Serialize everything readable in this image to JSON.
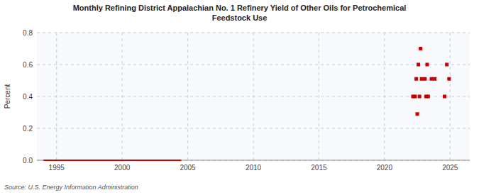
{
  "chart_data": {
    "type": "line",
    "title": "Monthly Refining District Appalachian No. 1 Refinery Yield of Other Oils for Petrochemical\nFeedstock Use",
    "y_label": "Percent",
    "annotations": [
      "Source: U.S. Energy Information Administration"
    ],
    "xlim": [
      1993.5,
      2026.5
    ],
    "xticks": [
      1995,
      2000,
      2005,
      2010,
      2015,
      2020,
      2025
    ],
    "ylim": [
      0.0,
      0.8
    ],
    "yticks": [
      {
        "value": 0.0,
        "label": "0.0"
      },
      0.2,
      0.4,
      0.6,
      0.8
    ],
    "grid": true,
    "series": [
      {
        "type": "line",
        "color": "#cc0000",
        "line_style": "solid",
        "x": [
          1994.0,
          2004.5
        ],
        "values": [
          0.0,
          0.0
        ]
      },
      {
        "type": "scatter",
        "color": "#cc0000",
        "marker": "square",
        "x": [
          2022.75,
          2022.58,
          2023.25,
          2024.75,
          2022.42,
          2022.83,
          2023.08,
          2023.58,
          2023.83,
          2024.92,
          2022.17,
          2022.33,
          2022.67,
          2023.17,
          2023.33,
          2024.58,
          2022.5
        ],
        "values": [
          0.7,
          0.6,
          0.6,
          0.6,
          0.51,
          0.51,
          0.51,
          0.51,
          0.51,
          0.51,
          0.4,
          0.4,
          0.4,
          0.4,
          0.4,
          0.4,
          0.29
        ]
      }
    ]
  }
}
